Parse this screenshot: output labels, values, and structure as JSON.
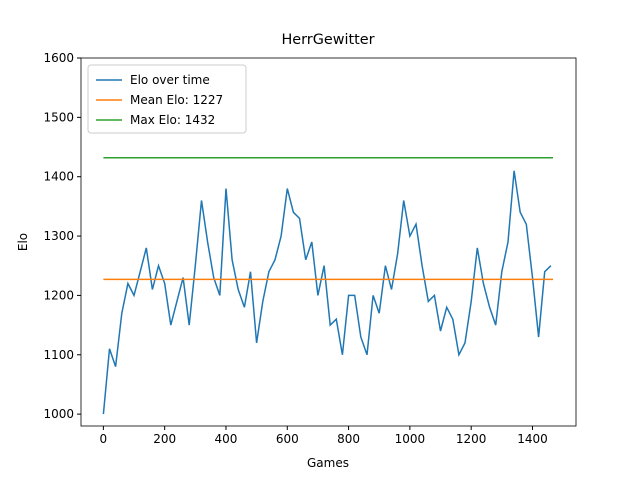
{
  "chart_data": {
    "type": "line",
    "title": "HerrGewitter",
    "x_label": "Games",
    "y_label": "Elo",
    "xlim": [
      -73,
      1542
    ],
    "ylim": [
      980,
      1600
    ],
    "xticks": [
      0,
      200,
      400,
      600,
      800,
      1000,
      1200,
      1400
    ],
    "yticks": [
      1000,
      1100,
      1200,
      1300,
      1400,
      1500,
      1600
    ],
    "legend": "upper left",
    "series": [
      {
        "name": "Elo over time",
        "color": "#1f77b4",
        "x": [
          0,
          20,
          40,
          60,
          80,
          100,
          120,
          140,
          160,
          180,
          200,
          220,
          240,
          260,
          280,
          300,
          320,
          340,
          360,
          380,
          400,
          420,
          440,
          460,
          480,
          500,
          520,
          540,
          560,
          580,
          600,
          620,
          640,
          660,
          680,
          700,
          720,
          740,
          760,
          780,
          800,
          820,
          840,
          860,
          880,
          900,
          920,
          940,
          960,
          980,
          1000,
          1020,
          1040,
          1060,
          1080,
          1100,
          1120,
          1140,
          1160,
          1180,
          1200,
          1220,
          1240,
          1260,
          1280,
          1300,
          1320,
          1340,
          1360,
          1380,
          1400,
          1420,
          1440,
          1460
        ],
        "values": [
          1000,
          1110,
          1080,
          1170,
          1220,
          1200,
          1240,
          1280,
          1210,
          1250,
          1220,
          1150,
          1190,
          1230,
          1150,
          1250,
          1360,
          1290,
          1230,
          1200,
          1380,
          1260,
          1210,
          1180,
          1240,
          1120,
          1190,
          1240,
          1260,
          1300,
          1380,
          1340,
          1330,
          1260,
          1290,
          1200,
          1250,
          1150,
          1160,
          1100,
          1200,
          1200,
          1130,
          1100,
          1200,
          1170,
          1250,
          1210,
          1270,
          1360,
          1300,
          1320,
          1250,
          1190,
          1200,
          1140,
          1180,
          1160,
          1100,
          1120,
          1190,
          1280,
          1220,
          1180,
          1150,
          1240,
          1290,
          1410,
          1340,
          1320,
          1230,
          1130,
          1240,
          1250
        ]
      },
      {
        "name": "Mean Elo: 1227",
        "color": "#ff7f0e",
        "x": [
          0,
          1467
        ],
        "values": [
          1227,
          1227
        ]
      },
      {
        "name": "Max Elo: 1432",
        "color": "#2ca02c",
        "x": [
          0,
          1467
        ],
        "values": [
          1432,
          1432
        ]
      }
    ]
  }
}
